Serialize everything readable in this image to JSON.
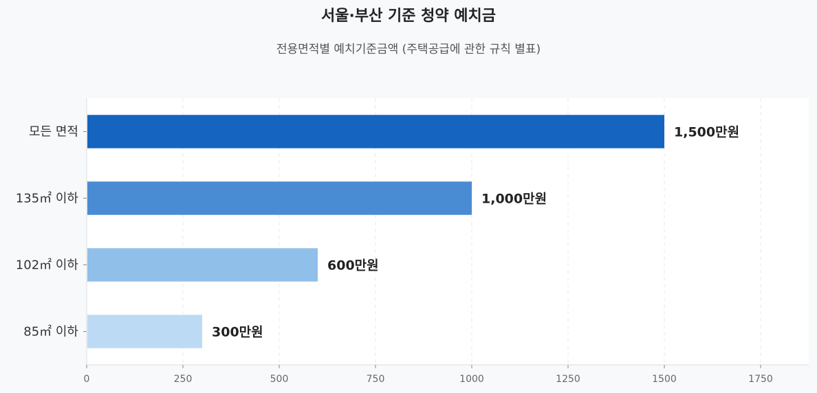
{
  "chart_data": {
    "type": "bar",
    "orientation": "horizontal",
    "title": "서울·부산 기준 청약 예치금",
    "subtitle": "전용면적별 예치기준금액 (주택공급에 관한 규칙 별표)",
    "categories": [
      "모든 면적",
      "135㎡ 이하",
      "102㎡ 이하",
      "85㎡ 이하"
    ],
    "values": [
      1500,
      1000,
      600,
      300
    ],
    "value_labels": [
      "1,500만원",
      "1,000만원",
      "600만원",
      "300만원"
    ],
    "bar_colors": [
      "#1565c0",
      "#4a8cd4",
      "#90bfe9",
      "#bddaf5"
    ],
    "xlim": [
      0,
      1875
    ],
    "xticks": [
      0,
      250,
      500,
      750,
      1000,
      1250,
      1500,
      1750
    ],
    "grid": true,
    "xlabel": "",
    "ylabel": ""
  }
}
